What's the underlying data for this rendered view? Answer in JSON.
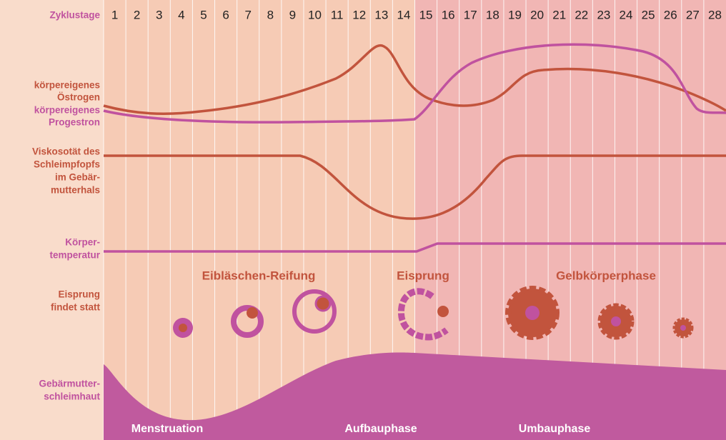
{
  "header": {
    "label": "Zyklustage",
    "days": [
      "1",
      "2",
      "3",
      "4",
      "5",
      "6",
      "7",
      "8",
      "9",
      "10",
      "11",
      "12",
      "13",
      "14",
      "15",
      "16",
      "17",
      "18",
      "19",
      "20",
      "21",
      "22",
      "23",
      "24",
      "25",
      "26",
      "27",
      "28"
    ]
  },
  "rows": {
    "estrogen": {
      "lines": [
        "körpereigenes",
        "Östrogen"
      ]
    },
    "progesterone": {
      "lines": [
        "körpereigenes",
        "Progestron"
      ]
    },
    "viscosity": {
      "lines": [
        "Viskosotät des",
        "Schleimpfopfs",
        "im Gebär-",
        "mutterhals"
      ]
    },
    "temperature": {
      "lines": [
        "Körper-",
        "temperatur"
      ]
    },
    "ovulation": {
      "lines": [
        "Eisprung",
        "findet statt"
      ]
    },
    "endometrium": {
      "lines": [
        "Gebärmutter-",
        "schleimhaut"
      ]
    }
  },
  "follicle_phases": [
    "Eibläschen-Reifung",
    "Eisprung",
    "Gelbkörperphase"
  ],
  "endometrium_phases": [
    "Menstruation",
    "Aufbauphase",
    "Umbauphase"
  ]
}
